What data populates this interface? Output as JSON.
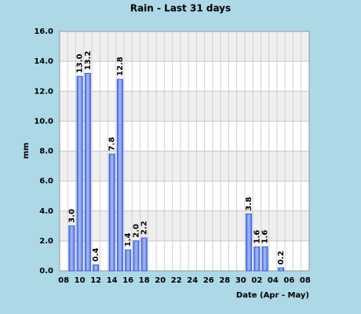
{
  "chart_data": {
    "type": "bar",
    "title": "Rain - Last 31 days",
    "y_label": "mm",
    "x_label": "Date (Apr - May)",
    "categories": [
      "08",
      null,
      "10",
      null,
      "12",
      null,
      "14",
      null,
      "16",
      null,
      "18",
      null,
      "20",
      null,
      "22",
      null,
      "24",
      null,
      "26",
      null,
      "28",
      null,
      "30",
      null,
      "02",
      null,
      "04",
      null,
      "06",
      null,
      "08"
    ],
    "values": [
      null,
      3.0,
      13.0,
      13.2,
      0.4,
      null,
      7.8,
      12.8,
      1.4,
      2.0,
      2.2,
      null,
      null,
      null,
      null,
      null,
      null,
      null,
      null,
      null,
      null,
      null,
      null,
      3.8,
      1.6,
      1.6,
      null,
      0.2,
      null,
      null,
      null
    ],
    "value_labels": [
      null,
      "3.0",
      "13.0",
      "13.2",
      "0.4",
      null,
      "7.8",
      "12.8",
      "1.4",
      "2.0",
      "2.2",
      null,
      null,
      null,
      null,
      null,
      null,
      null,
      null,
      null,
      null,
      null,
      null,
      "3.8",
      "1.6",
      "1.6",
      null,
      "0.2",
      null,
      null,
      null
    ],
    "color": "#6f8ff2",
    "ylim": [
      0,
      16
    ],
    "yticks": [
      {
        "value": 0,
        "label": "0.0"
      },
      {
        "value": 2,
        "label": "2.0"
      },
      {
        "value": 4,
        "label": "4.0"
      },
      {
        "value": 6,
        "label": "6.0"
      },
      {
        "value": 8,
        "label": "8.0"
      },
      {
        "value": 10,
        "label": "10.0"
      },
      {
        "value": 12,
        "label": "12.0"
      },
      {
        "value": 14,
        "label": "14.0"
      },
      {
        "value": 16,
        "label": "16.0"
      }
    ],
    "grid": true
  }
}
